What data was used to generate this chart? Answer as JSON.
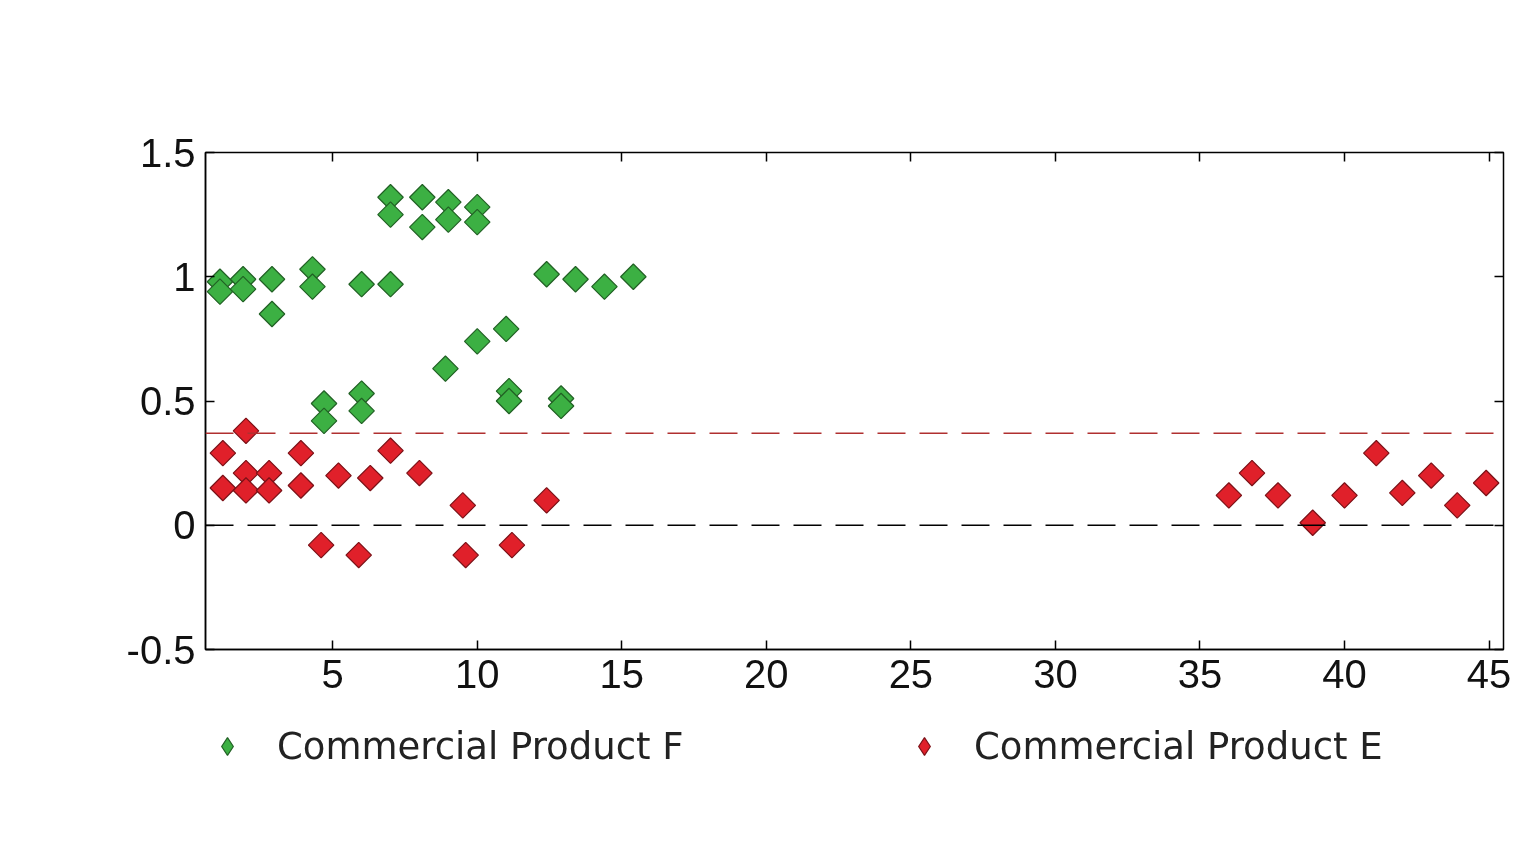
{
  "chart_data": {
    "type": "scatter",
    "marker": "diamond",
    "legend": "bottom",
    "xlim": [
      0.6,
      45.5
    ],
    "xticks": [
      5,
      10,
      15,
      20,
      25,
      30,
      35,
      40,
      45
    ],
    "ylim": [
      -0.5,
      1.5
    ],
    "yticks": [
      -0.5,
      0,
      0.5,
      1,
      1.5
    ],
    "ref_lines": [
      {
        "axis": "y",
        "value": 0,
        "color": "#000000",
        "line_style": "dashed"
      },
      {
        "axis": "y",
        "value": 0.37,
        "color": "#b03030",
        "line_style": "dashed"
      }
    ],
    "series": [
      {
        "name": "Commercial Product F",
        "color": "#3cb043",
        "x": [
          1.1,
          1.1,
          1.9,
          1.9,
          2.9,
          2.9,
          4.3,
          4.3,
          4.7,
          4.7,
          6.0,
          6.0,
          6.0,
          7.0,
          7.0,
          7.0,
          8.1,
          8.1,
          9.0,
          9.0,
          8.9,
          10.0,
          10.0,
          10.0,
          11.0,
          11.1,
          11.1,
          12.4,
          12.9,
          12.9,
          13.4,
          14.4,
          15.4
        ],
        "values": [
          0.98,
          0.94,
          0.99,
          0.95,
          0.99,
          0.85,
          1.03,
          0.96,
          0.49,
          0.42,
          0.97,
          0.53,
          0.46,
          0.97,
          1.32,
          1.25,
          1.32,
          1.2,
          1.3,
          1.23,
          0.63,
          1.28,
          1.22,
          0.74,
          0.79,
          0.54,
          0.5,
          1.01,
          0.51,
          0.48,
          0.99,
          0.96,
          1.0
        ]
      },
      {
        "name": "Commercial Product E",
        "color": "#e0202a",
        "x": [
          1.2,
          1.2,
          2.0,
          2.0,
          2.0,
          2.8,
          2.8,
          3.9,
          3.9,
          4.6,
          5.2,
          5.9,
          6.3,
          7.0,
          8.0,
          9.5,
          9.6,
          11.2,
          12.4,
          36.0,
          36.8,
          37.7,
          38.9,
          40.0,
          41.1,
          42.0,
          43.0,
          43.9,
          44.9
        ],
        "values": [
          0.29,
          0.15,
          0.38,
          0.21,
          0.14,
          0.21,
          0.14,
          0.29,
          0.16,
          -0.08,
          0.2,
          -0.12,
          0.19,
          0.3,
          0.21,
          0.08,
          -0.12,
          -0.08,
          0.1,
          0.12,
          0.21,
          0.12,
          0.01,
          0.12,
          0.29,
          0.13,
          0.2,
          0.08,
          0.17
        ]
      }
    ]
  }
}
